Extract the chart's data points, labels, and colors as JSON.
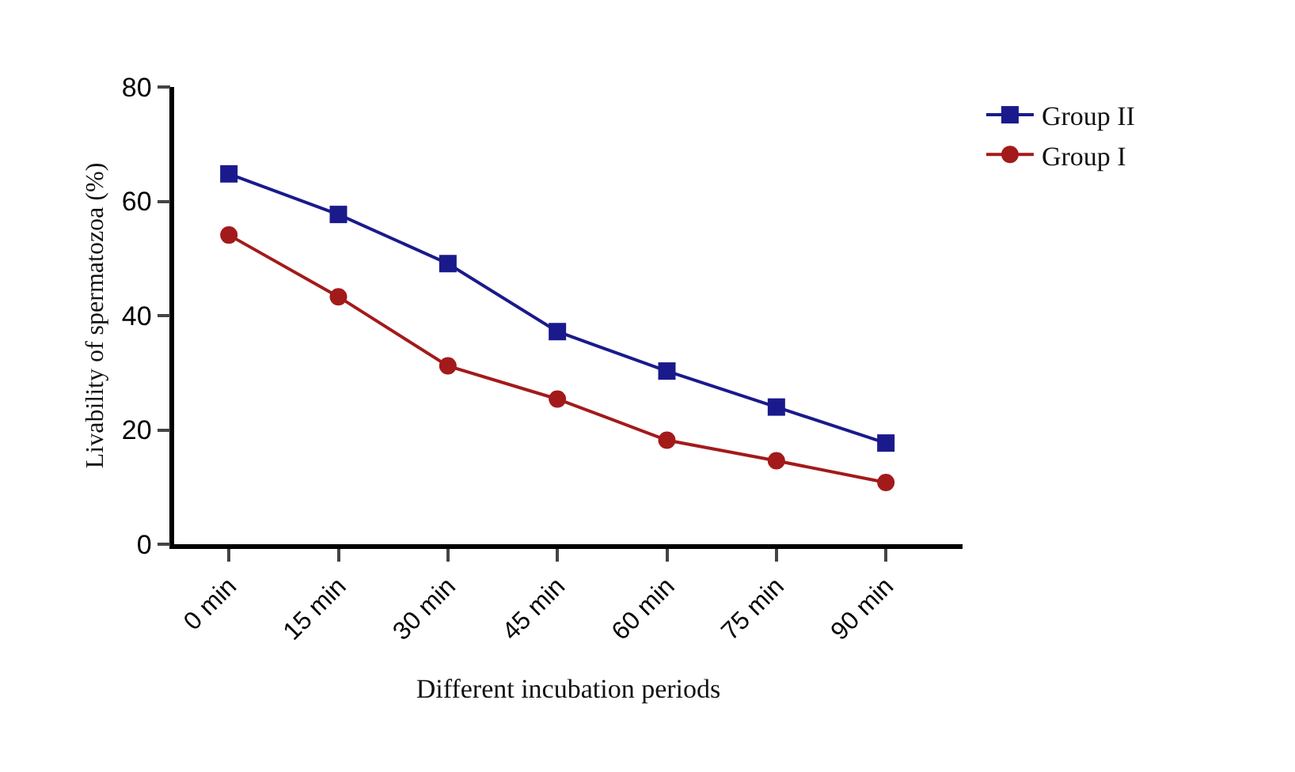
{
  "chart_data": {
    "type": "line",
    "xlabel": "Different incubation periods",
    "ylabel": "Livability of spermatozoa (%)",
    "categories": [
      "0 min",
      "15 min",
      "30 min",
      "45 min",
      "60 min",
      "75 min",
      "90 min"
    ],
    "series": [
      {
        "name": "Group II",
        "color": "#1a1a8c",
        "marker": "square",
        "values": [
          64.8,
          57.7,
          49.1,
          37.2,
          30.3,
          24,
          17.7
        ]
      },
      {
        "name": "Group I",
        "color": "#a31a1a",
        "marker": "circle",
        "values": [
          54.1,
          43.3,
          31.2,
          25.4,
          18.2,
          14.6,
          10.8
        ]
      }
    ],
    "ylim": [
      0,
      80
    ],
    "yticks": [
      0,
      20,
      40,
      60,
      80
    ],
    "grid": false,
    "legend": "top right",
    "line_style": "solid"
  }
}
